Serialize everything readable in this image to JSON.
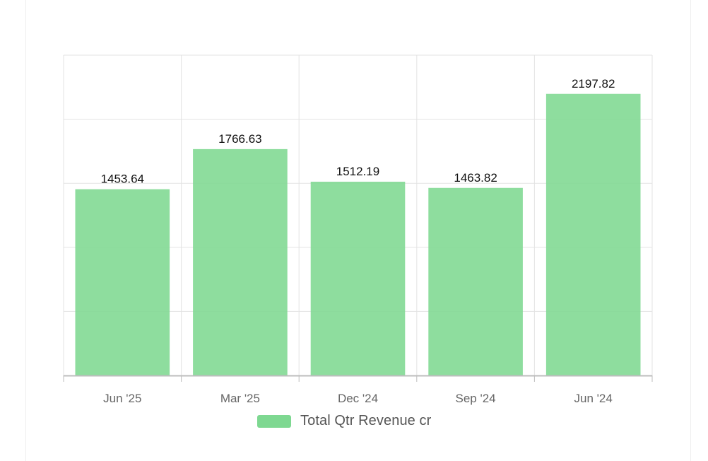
{
  "chart_data": {
    "type": "bar",
    "categories": [
      "Jun '25",
      "Mar '25",
      "Dec '24",
      "Sep '24",
      "Jun '24"
    ],
    "series": [
      {
        "name": "Total Qtr Revenue cr",
        "values": [
          1453.64,
          1766.63,
          1512.19,
          1463.82,
          2197.82
        ],
        "data_labels": [
          "1453.64",
          "1766.63",
          "1512.19",
          "1463.82",
          "2197.82"
        ],
        "color": "#7ed891"
      }
    ],
    "ylim": [
      0,
      2500
    ],
    "grid": true,
    "y_tick_labels_visible": false,
    "legend_position": "bottom-center"
  }
}
